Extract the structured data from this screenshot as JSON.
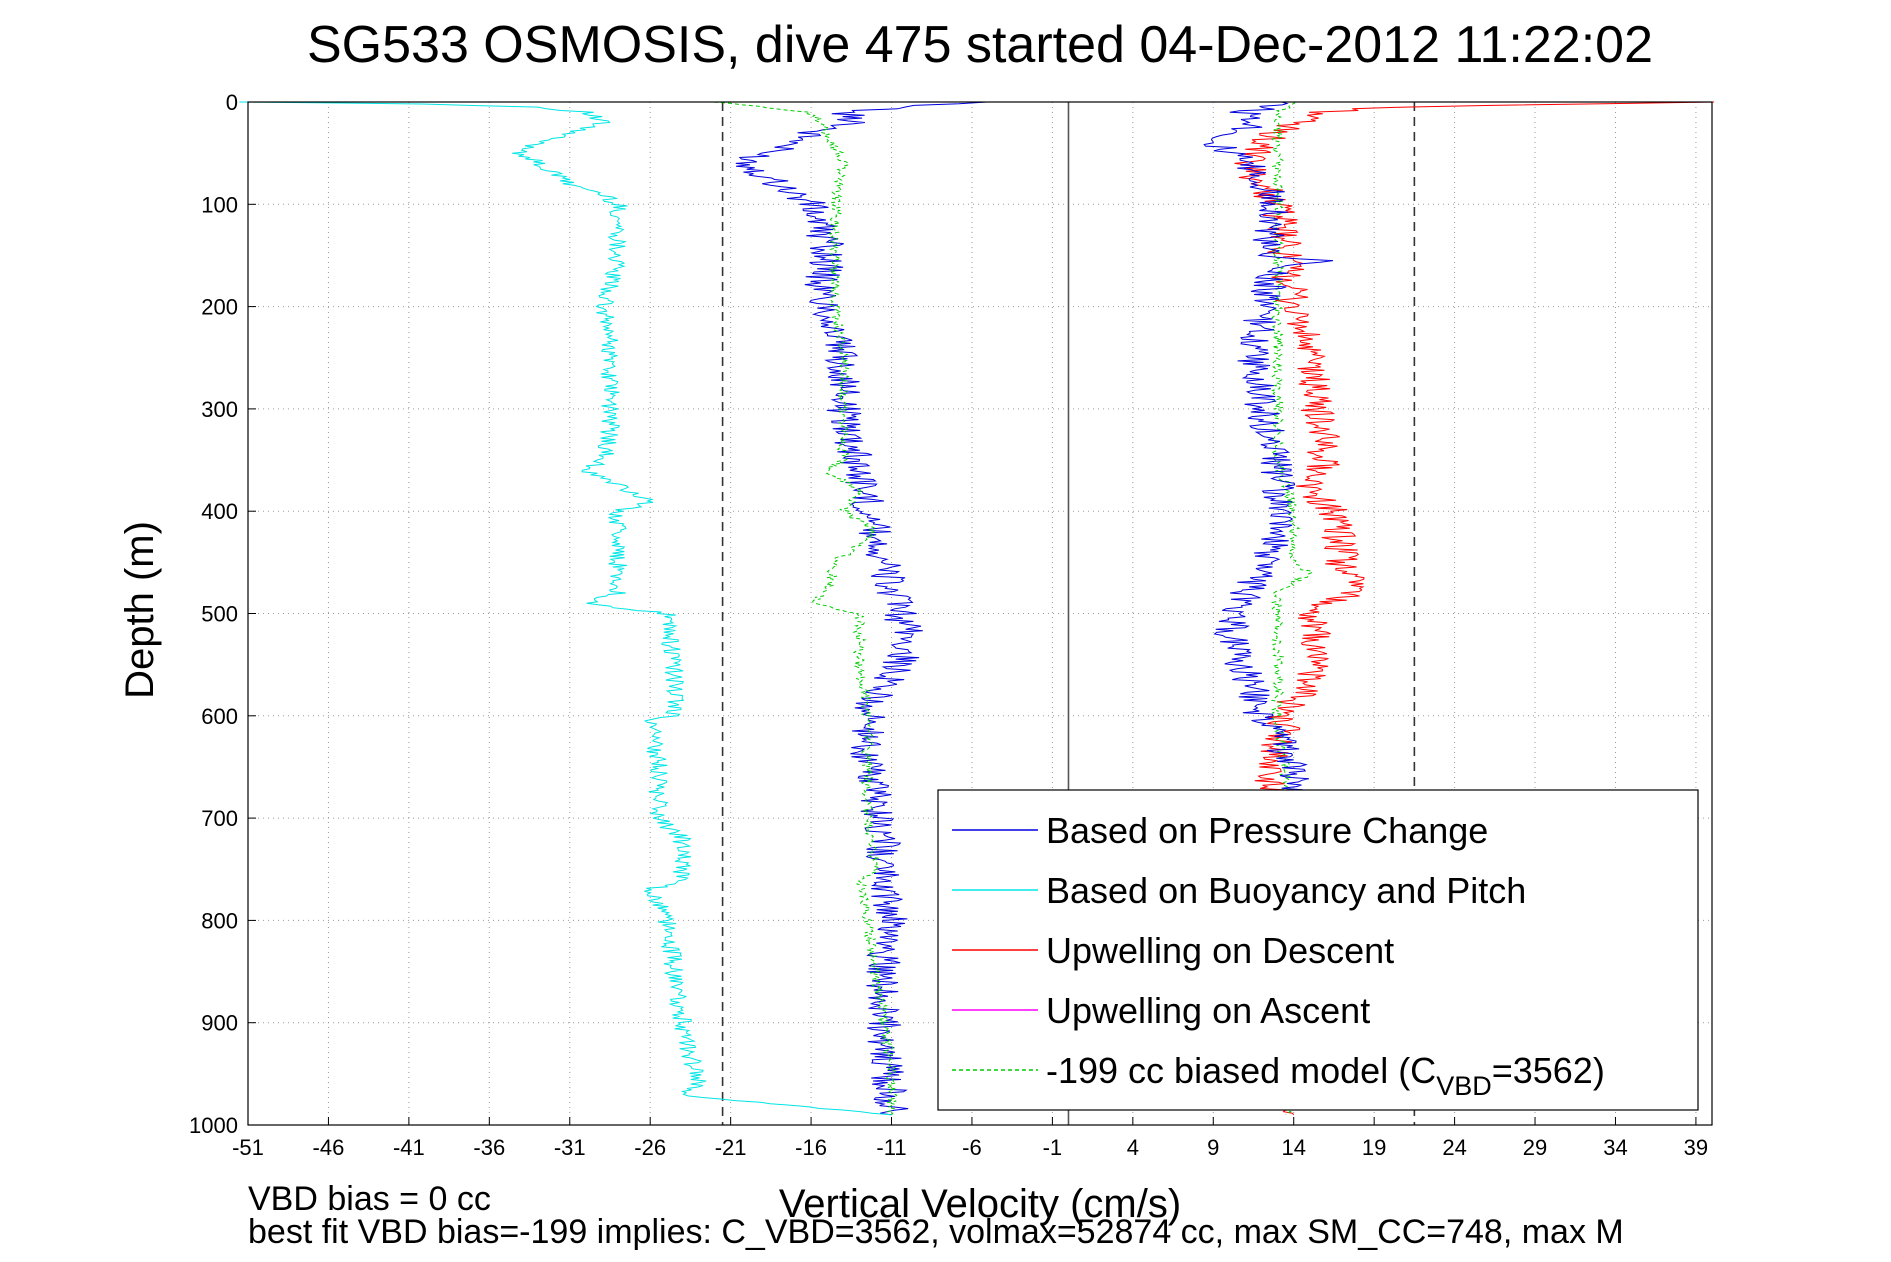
{
  "chart_data": {
    "type": "line",
    "title": "SG533 OSMOSIS, dive 475 started 04-Dec-2012 11:22:02",
    "xlabel": "Vertical Velocity (cm/s)",
    "ylabel": "Depth (m)",
    "xlim": [
      -51,
      40
    ],
    "ylim": [
      1000,
      0
    ],
    "y_reversed": true,
    "grid": "dotted",
    "x_ticks": [
      -51,
      -46,
      -41,
      -36,
      -31,
      -26,
      -21,
      -16,
      -11,
      -6,
      -1,
      4,
      9,
      14,
      19,
      24,
      29,
      34,
      39
    ],
    "y_ticks": [
      0,
      100,
      200,
      300,
      400,
      500,
      600,
      700,
      800,
      900,
      1000
    ],
    "reference_lines": [
      {
        "x": -21.5,
        "style": "dashed",
        "color": "#333333"
      },
      {
        "x": 0,
        "style": "solid",
        "color": "#555555"
      },
      {
        "x": 21.5,
        "style": "dashed",
        "color": "#333333"
      }
    ],
    "legend_position": "bottom-right",
    "legend": [
      {
        "label": "Based on Pressure Change",
        "color": "#0000dd",
        "style": "solid"
      },
      {
        "label": "Based on Buoyancy and Pitch",
        "color": "#00e5e5",
        "style": "solid"
      },
      {
        "label": "Upwelling on Descent",
        "color": "#ff0000",
        "style": "solid"
      },
      {
        "label": "Upwelling on Ascent",
        "color": "#ff00ff",
        "style": "solid"
      },
      {
        "label_main": "-199 cc biased model (C",
        "label_sub": "VBD",
        "label_tail": "=3562)",
        "color": "#00cc00",
        "style": "dashed"
      }
    ],
    "series": [
      {
        "name": "Based on Pressure Change",
        "color": "#0000dd",
        "depth": [
          0,
          5,
          10,
          20,
          30,
          40,
          50,
          60,
          70,
          80,
          90,
          100,
          120,
          140,
          160,
          180,
          200,
          230,
          260,
          300,
          330,
          360,
          390,
          420,
          450,
          480,
          500,
          520,
          540,
          560,
          580,
          600,
          640,
          680,
          720,
          760,
          800,
          840,
          880,
          920,
          960,
          990
        ],
        "velocity": [
          -6,
          -10,
          -14,
          -13,
          -16,
          -17,
          -19,
          -20,
          -19,
          -18,
          -17,
          -16,
          -15.5,
          -15,
          -15,
          -15.5,
          -15,
          -14.5,
          -14,
          -14,
          -13.5,
          -13,
          -12.5,
          -12,
          -11.5,
          -11,
          -10.5,
          -10,
          -10.2,
          -11,
          -12,
          -12.5,
          -12.5,
          -12,
          -11.5,
          -11.5,
          -11,
          -11.5,
          -11.5,
          -11.5,
          -11.2,
          -11
        ]
      },
      {
        "name": "Based on Buoyancy and Pitch",
        "color": "#00e5e5",
        "depth": [
          0,
          2,
          5,
          10,
          20,
          30,
          40,
          50,
          60,
          70,
          80,
          90,
          100,
          120,
          150,
          180,
          200,
          230,
          260,
          300,
          330,
          350,
          360,
          390,
          400,
          420,
          450,
          480,
          490,
          500,
          550,
          600,
          605,
          650,
          700,
          720,
          760,
          770,
          800,
          850,
          900,
          930,
          960,
          970,
          990
        ],
        "velocity": [
          -51,
          -40,
          -33,
          -30,
          -29,
          -31,
          -33,
          -34,
          -33,
          -32,
          -31,
          -29,
          -28,
          -28,
          -28,
          -28.5,
          -29,
          -28.5,
          -28.5,
          -28.5,
          -28.5,
          -29,
          -30,
          -26,
          -28,
          -28,
          -28,
          -28,
          -30,
          -25,
          -24.5,
          -24.5,
          -26,
          -25.5,
          -25.5,
          -24,
          -24,
          -26,
          -25,
          -24.5,
          -24,
          -23.5,
          -23,
          -24.5,
          -11
        ]
      },
      {
        "name": "Upwelling on Descent",
        "color": "#ff0000",
        "depth": [
          0,
          5,
          10,
          20,
          40,
          60,
          80,
          100,
          150,
          200,
          250,
          300,
          350,
          380,
          400,
          450,
          480,
          490,
          500,
          550,
          600,
          630,
          650,
          990
        ],
        "velocity": [
          40,
          20,
          16,
          14,
          12,
          11,
          12,
          13,
          13.5,
          14,
          15,
          15.5,
          16,
          15,
          16.5,
          17,
          18,
          16,
          15,
          15.5,
          13.5,
          13,
          12.5,
          14
        ]
      },
      {
        "name": "Upwelling on Ascent",
        "color": "#ff00ff",
        "depth": [],
        "velocity": []
      },
      {
        "name": "-199 cc biased model (C_VBD=3562)",
        "color": "#00cc00",
        "depth": [
          0,
          10,
          30,
          60,
          100,
          150,
          200,
          250,
          300,
          350,
          360,
          380,
          400,
          420,
          450,
          480,
          490,
          500,
          550,
          600,
          650,
          700,
          750,
          760,
          800,
          850,
          900,
          950,
          990
        ],
        "velocity": [
          -22,
          -16,
          -15,
          -14,
          -14.5,
          -14.5,
          -14.5,
          -14,
          -14,
          -14,
          -15,
          -13,
          -14,
          -12,
          -14.5,
          -15,
          -16,
          -13,
          -13,
          -12.5,
          -12.5,
          -12.5,
          -12,
          -13,
          -12.5,
          -12,
          -11.5,
          -11,
          -11
        ]
      },
      {
        "name": "-199 cc biased model (positive)",
        "color": "#00cc00",
        "depth": [
          0,
          10,
          30,
          60,
          100,
          150,
          200,
          250,
          300,
          350,
          400,
          450,
          460,
          480,
          500,
          550,
          600,
          650,
          700,
          750,
          800,
          850,
          900,
          950,
          990
        ],
        "velocity": [
          14,
          13,
          13,
          13,
          13,
          13,
          13,
          13,
          13,
          13,
          14,
          14,
          15,
          13,
          13,
          13,
          13,
          13.5,
          13.5,
          13.5,
          13.5,
          13.5,
          13.5,
          13.5,
          13.5
        ]
      },
      {
        "name": "Based on Pressure Change (positive)",
        "color": "#0000dd",
        "depth": [
          0,
          10,
          20,
          40,
          60,
          80,
          100,
          150,
          155,
          160,
          200,
          250,
          300,
          350,
          400,
          450,
          480,
          500,
          520,
          540,
          560,
          580,
          600,
          620,
          640,
          660,
          680
        ],
        "velocity": [
          14,
          11,
          12,
          9,
          11,
          12,
          13,
          12,
          16,
          13,
          12,
          11.5,
          12,
          13,
          13,
          12.5,
          11,
          10.5,
          10,
          10.5,
          11,
          11.5,
          12,
          13,
          13.5,
          14,
          14.5
        ]
      }
    ]
  },
  "footer": {
    "line1": "VBD bias = 0 cc",
    "line2": "best fit VBD bias=-199 implies: C_VBD=3562, volmax=52874 cc, max SM_CC=748, max M"
  }
}
